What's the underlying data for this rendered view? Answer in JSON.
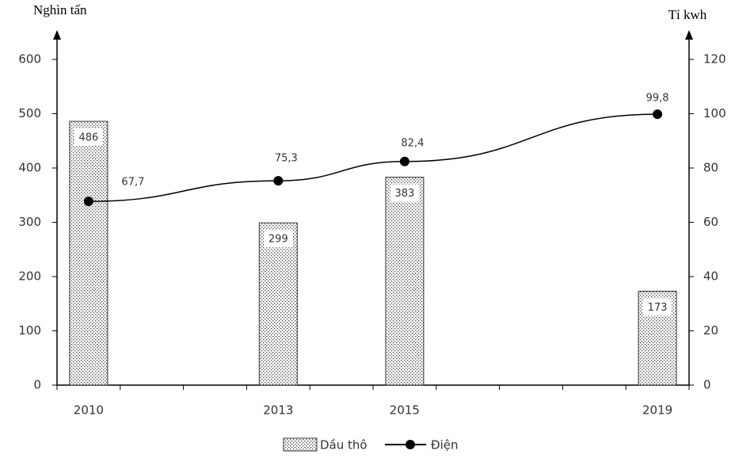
{
  "chart_data": {
    "type": "bar-line",
    "y_label": "Nghìn tấn",
    "y2_label": "Tỉ kwh",
    "x": [
      2010,
      2013,
      2015,
      2019
    ],
    "x_labels": [
      "2010",
      "2013",
      "2015",
      "2019"
    ],
    "xlim": [
      2009.5,
      2019.5
    ],
    "ylim": [
      0,
      600
    ],
    "yticks": [
      0,
      100,
      200,
      300,
      400,
      500,
      600
    ],
    "y2lim": [
      0,
      120
    ],
    "y2ticks": [
      0,
      20,
      40,
      60,
      80,
      100,
      120
    ],
    "series": [
      {
        "name": "Dầu thô",
        "kind": "bar",
        "color": "#333333",
        "values": [
          486,
          299,
          383,
          173
        ]
      },
      {
        "name": "Điện",
        "kind": "line",
        "axis": "y2",
        "color": "#000000",
        "values": [
          67.7,
          75.3,
          82.4,
          99.8
        ],
        "value_labels": [
          "67,7",
          "75,3",
          "82,4",
          "99,8"
        ]
      }
    ]
  }
}
